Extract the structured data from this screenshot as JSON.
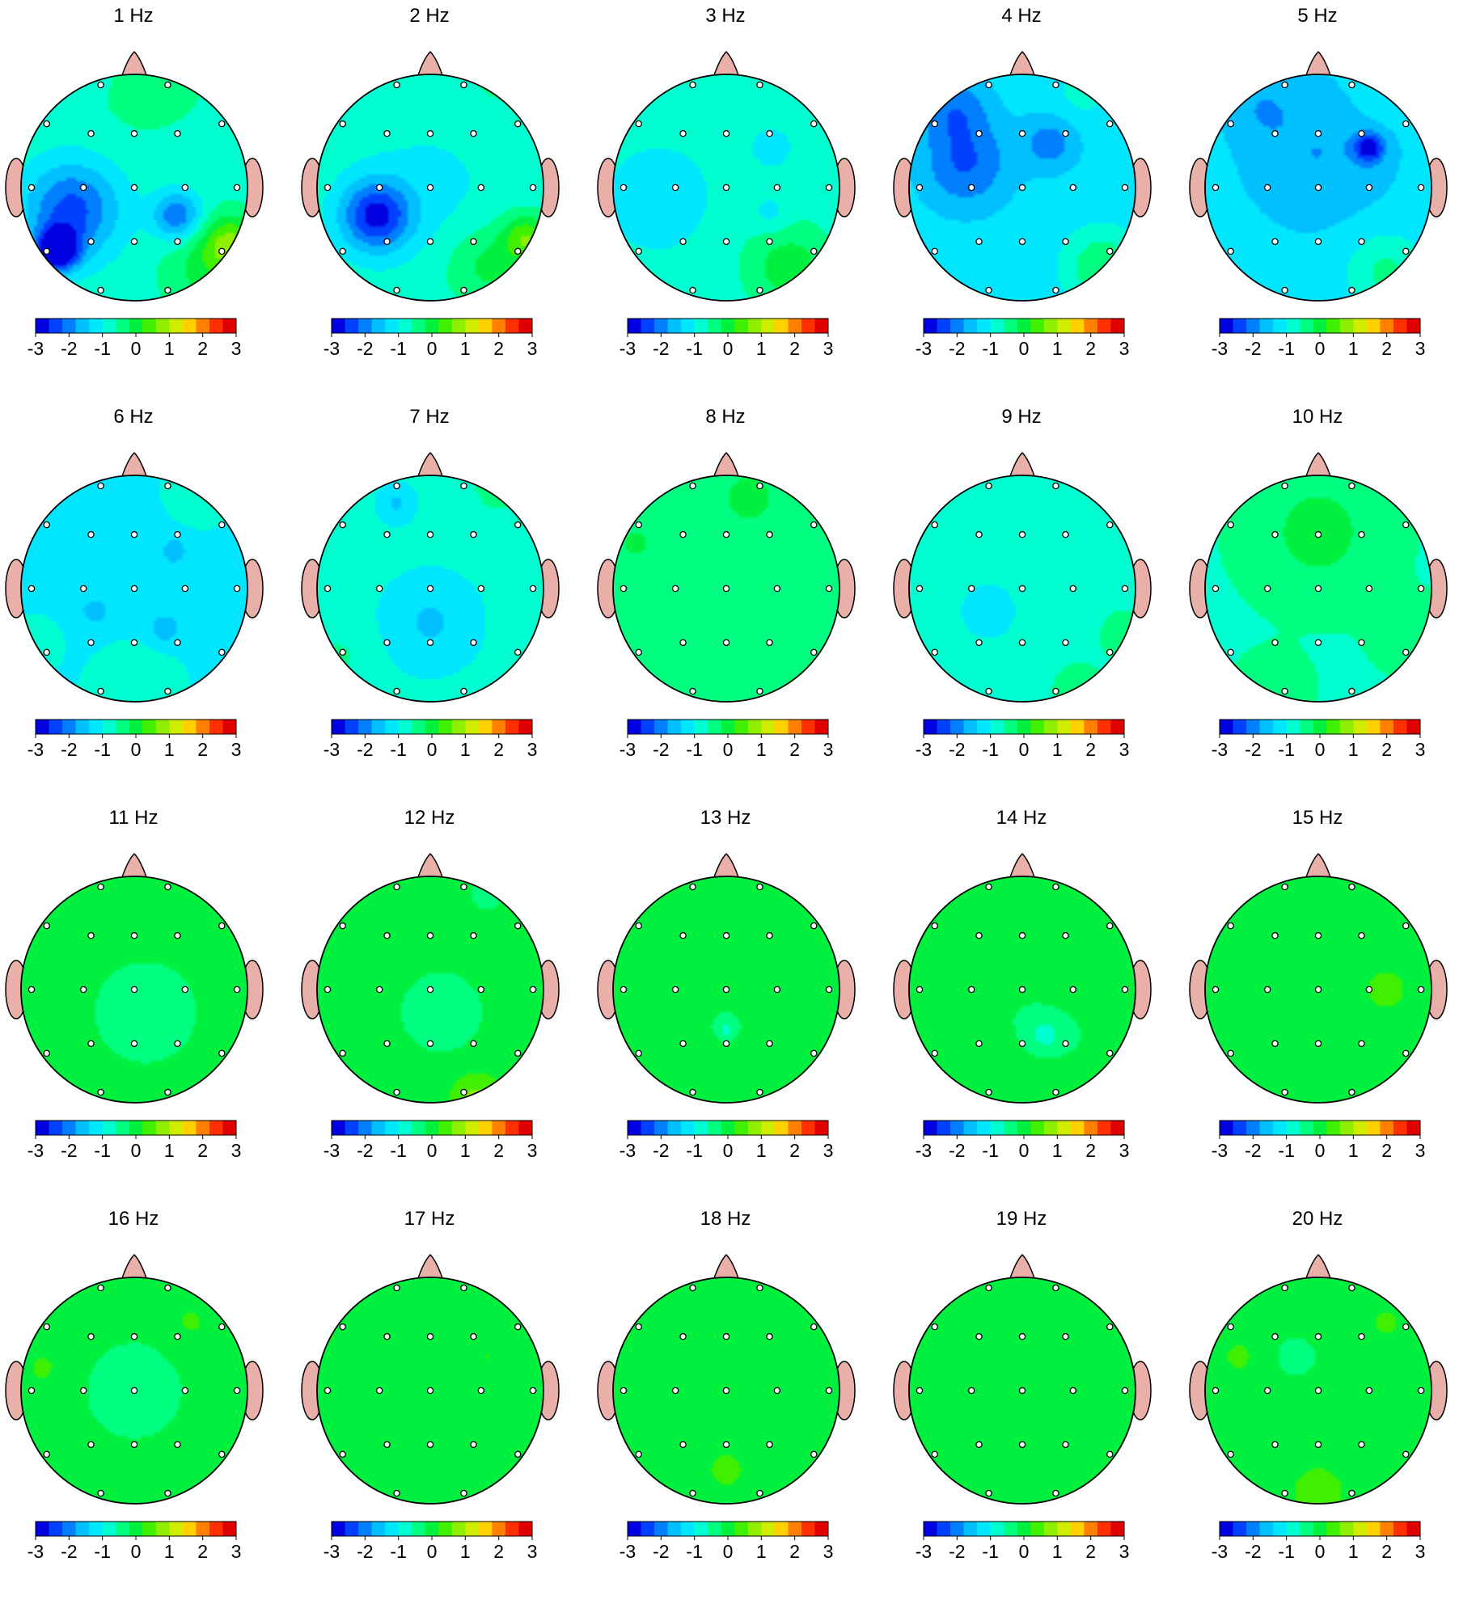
{
  "figure": {
    "maps": [
      {
        "title": "1 Hz",
        "mean": -0.75,
        "blobs": [
          [
            -0.68,
            0.55,
            0.13,
            -2.5
          ],
          [
            -0.55,
            0.2,
            0.3,
            -1.6
          ],
          [
            0.38,
            0.25,
            0.15,
            -1.4
          ],
          [
            0.85,
            0.5,
            0.18,
            1.4
          ],
          [
            0.6,
            0.75,
            0.25,
            0.6
          ],
          [
            0.0,
            -0.75,
            0.3,
            0.2
          ],
          [
            0.3,
            -0.95,
            0.2,
            0.4
          ]
        ]
      },
      {
        "title": "2 Hz",
        "mean": -0.8,
        "blobs": [
          [
            -0.48,
            0.25,
            0.22,
            -1.9
          ],
          [
            0.85,
            0.45,
            0.15,
            1.3
          ],
          [
            0.5,
            0.7,
            0.25,
            0.7
          ],
          [
            0.6,
            -0.95,
            0.2,
            0.3
          ],
          [
            0.0,
            0.0,
            0.4,
            -0.3
          ]
        ]
      },
      {
        "title": "3 Hz",
        "mean": -0.9,
        "blobs": [
          [
            0.55,
            0.7,
            0.3,
            0.9
          ],
          [
            0.6,
            -0.95,
            0.2,
            0.2
          ],
          [
            -0.6,
            0.1,
            0.3,
            -0.3
          ],
          [
            0.4,
            0.25,
            0.12,
            -0.4
          ],
          [
            0.4,
            -0.35,
            0.1,
            -0.4
          ]
        ]
      },
      {
        "title": "4 Hz",
        "mean": -1.2,
        "blobs": [
          [
            -0.5,
            -0.2,
            0.28,
            -1.0
          ],
          [
            -0.6,
            -0.7,
            0.22,
            -0.8
          ],
          [
            0.25,
            -0.4,
            0.18,
            -0.8
          ],
          [
            0.7,
            0.7,
            0.22,
            1.0
          ],
          [
            0.5,
            -0.8,
            0.2,
            0.3
          ]
        ]
      },
      {
        "title": "5 Hz",
        "mean": -1.3,
        "blobs": [
          [
            0.45,
            -0.35,
            0.09,
            -1.5
          ],
          [
            0.0,
            -0.3,
            0.4,
            -0.5
          ],
          [
            -0.5,
            -0.7,
            0.2,
            -0.4
          ],
          [
            0.6,
            0.75,
            0.25,
            0.8
          ],
          [
            0.6,
            -0.9,
            0.2,
            0.4
          ]
        ]
      },
      {
        "title": "6 Hz",
        "mean": -1.05,
        "blobs": [
          [
            0.35,
            -0.33,
            0.08,
            -0.7
          ],
          [
            -0.35,
            0.2,
            0.08,
            -0.7
          ],
          [
            0.27,
            0.35,
            0.09,
            -0.7
          ],
          [
            0.0,
            0.95,
            0.25,
            0.4
          ],
          [
            0.6,
            -0.9,
            0.2,
            0.3
          ],
          [
            -0.9,
            0.5,
            0.15,
            0.3
          ]
        ]
      },
      {
        "title": "7 Hz",
        "mean": -0.85,
        "blobs": [
          [
            -0.3,
            -0.75,
            0.12,
            -0.6
          ],
          [
            0.0,
            0.3,
            0.3,
            -0.6
          ],
          [
            0.6,
            -0.9,
            0.2,
            0.4
          ],
          [
            -0.8,
            0.6,
            0.2,
            0.3
          ]
        ]
      },
      {
        "title": "8 Hz",
        "mean": -0.6,
        "blobs": [
          [
            0.2,
            -0.8,
            0.2,
            0.6
          ],
          [
            -0.8,
            -0.4,
            0.15,
            0.5
          ],
          [
            0.3,
            0.9,
            0.2,
            0.3
          ],
          [
            -0.35,
            0.9,
            0.2,
            0.3
          ]
        ]
      },
      {
        "title": "9 Hz",
        "mean": -0.75,
        "blobs": [
          [
            -0.3,
            0.2,
            0.2,
            -0.5
          ],
          [
            0.9,
            0.4,
            0.15,
            0.4
          ],
          [
            0.5,
            0.9,
            0.2,
            0.3
          ]
        ]
      },
      {
        "title": "10 Hz",
        "mean": -0.65,
        "blobs": [
          [
            0.0,
            -0.5,
            0.4,
            0.6
          ],
          [
            0.8,
            0.4,
            0.2,
            0.4
          ],
          [
            -0.4,
            0.9,
            0.2,
            0.4
          ]
        ]
      },
      {
        "title": "11 Hz",
        "mean": 0.0,
        "blobs": [
          [
            0.1,
            0.2,
            0.35,
            -0.45
          ],
          [
            0.0,
            -0.8,
            0.2,
            0.2
          ]
        ]
      },
      {
        "title": "12 Hz",
        "mean": 0.0,
        "blobs": [
          [
            0.1,
            0.2,
            0.3,
            -0.4
          ],
          [
            0.5,
            -0.85,
            0.15,
            -0.3
          ],
          [
            0.4,
            0.95,
            0.15,
            0.7
          ]
        ]
      },
      {
        "title": "13 Hz",
        "mean": -0.2,
        "blobs": [
          [
            0.5,
            -0.4,
            0.2,
            0.4
          ],
          [
            -0.75,
            -0.5,
            0.15,
            0.3
          ],
          [
            0.0,
            0.9,
            0.25,
            0.3
          ],
          [
            0.0,
            0.35,
            0.05,
            -0.6
          ]
        ]
      },
      {
        "title": "14 Hz",
        "mean": -0.2,
        "blobs": [
          [
            0.55,
            -0.4,
            0.2,
            0.4
          ],
          [
            -0.8,
            -0.3,
            0.15,
            0.4
          ],
          [
            0.2,
            0.4,
            0.08,
            -0.7
          ],
          [
            0.0,
            0.95,
            0.2,
            0.2
          ]
        ]
      },
      {
        "title": "15 Hz",
        "mean": -0.15,
        "blobs": [
          [
            0.6,
            0.0,
            0.3,
            0.4
          ],
          [
            -0.75,
            -0.4,
            0.15,
            0.3
          ],
          [
            0.0,
            0.9,
            0.25,
            0.3
          ]
        ]
      },
      {
        "title": "16 Hz",
        "mean": -0.05,
        "blobs": [
          [
            0.0,
            0.0,
            0.3,
            -0.4
          ],
          [
            0.5,
            -0.6,
            0.15,
            0.3
          ],
          [
            -0.8,
            -0.2,
            0.15,
            0.3
          ]
        ]
      },
      {
        "title": "17 Hz",
        "mean": -0.15,
        "blobs": [
          [
            -0.9,
            -0.5,
            0.03,
            0.8
          ],
          [
            0.5,
            -0.3,
            0.2,
            0.35
          ],
          [
            -0.6,
            -0.3,
            0.15,
            0.3
          ],
          [
            0.0,
            0.6,
            0.15,
            0.2
          ]
        ]
      },
      {
        "title": "18 Hz",
        "mean": -0.15,
        "blobs": [
          [
            -0.9,
            -0.5,
            0.03,
            0.8
          ],
          [
            0.0,
            0.7,
            0.25,
            0.4
          ],
          [
            0.6,
            -0.5,
            0.15,
            0.3
          ],
          [
            -0.7,
            -0.5,
            0.12,
            0.25
          ]
        ]
      },
      {
        "title": "19 Hz",
        "mean": -0.15,
        "blobs": [
          [
            -0.95,
            -0.4,
            0.02,
            0.8
          ],
          [
            0.5,
            0.0,
            0.25,
            0.35
          ],
          [
            -0.8,
            -0.3,
            0.12,
            0.3
          ],
          [
            -0.4,
            0.45,
            0.06,
            0.3
          ]
        ]
      },
      {
        "title": "20 Hz",
        "mean": -0.05,
        "blobs": [
          [
            -0.9,
            -0.5,
            0.03,
            0.8
          ],
          [
            0.0,
            0.9,
            0.25,
            0.35
          ],
          [
            0.6,
            -0.6,
            0.15,
            0.3
          ],
          [
            -0.7,
            -0.3,
            0.15,
            0.3
          ],
          [
            -0.2,
            -0.3,
            0.12,
            -0.4
          ]
        ]
      }
    ],
    "colorbar": {
      "vmin": -3,
      "vmax": 3,
      "tick_labels": [
        "-3",
        "-2",
        "-1",
        "0",
        "1",
        "2",
        "3"
      ],
      "colors": [
        "#0000e0",
        "#0040ff",
        "#0080ff",
        "#00c0ff",
        "#00e6ff",
        "#00ffd0",
        "#00ff80",
        "#00f040",
        "#40f000",
        "#90ee00",
        "#d0ec00",
        "#ffd000",
        "#ff8000",
        "#ff3000",
        "#e00000"
      ]
    },
    "colors": {
      "head_outline": "#000000",
      "nose_ears": "#e8b0a8",
      "electrode_fill": "#ffffff",
      "electrode_stroke": "#000000"
    }
  }
}
